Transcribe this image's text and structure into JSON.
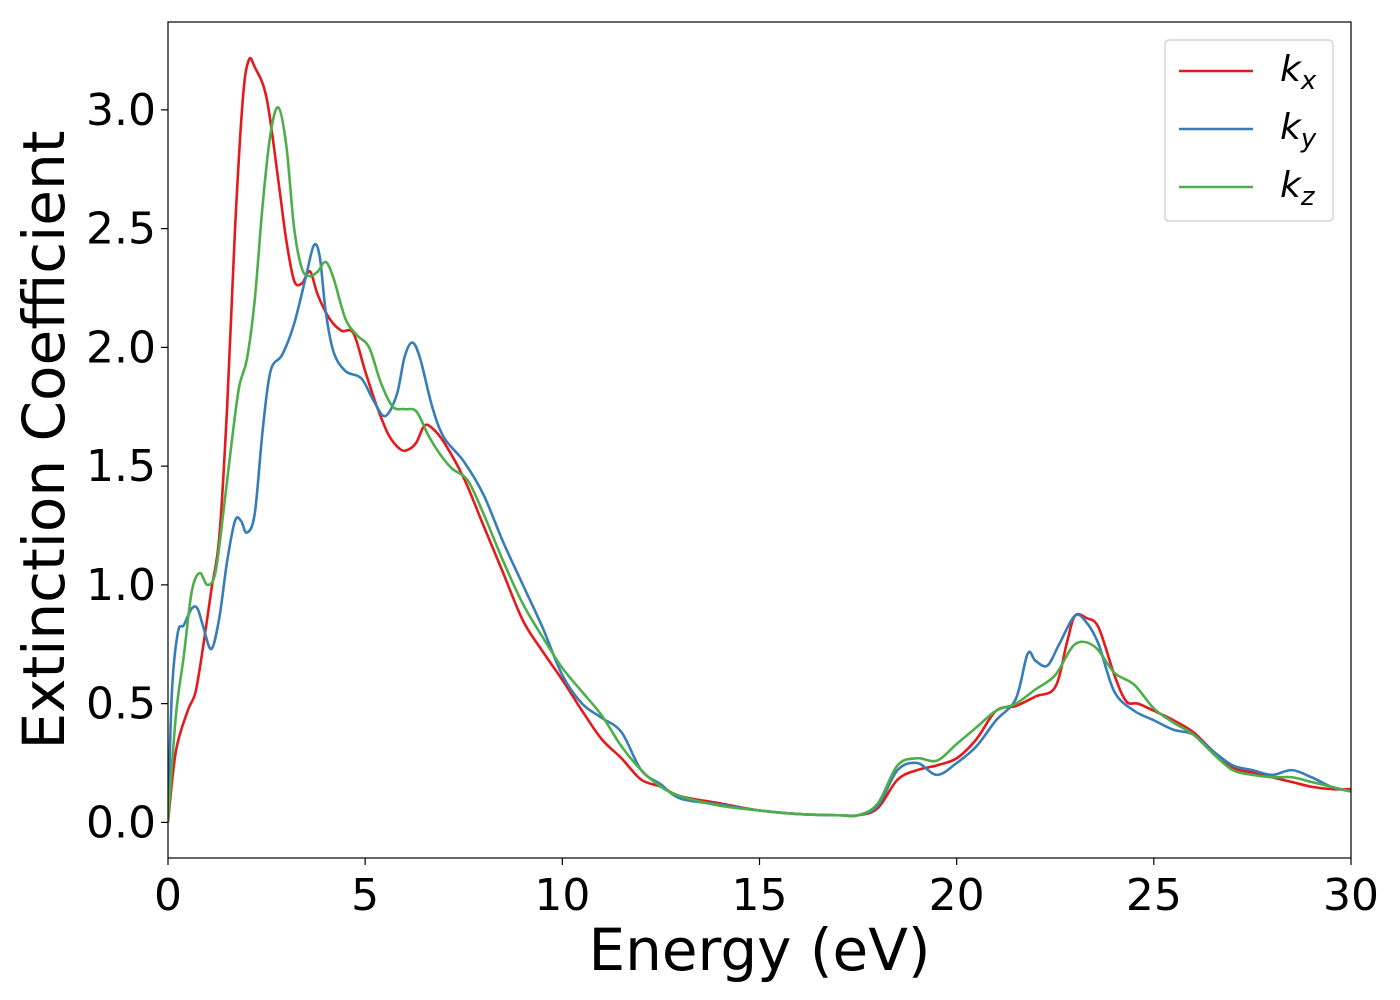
{
  "chart_data": {
    "type": "line",
    "xlabel": "Energy (eV)",
    "ylabel": "Extinction Coefficient",
    "xlim": [
      0,
      30
    ],
    "ylim": [
      -0.15,
      3.37
    ],
    "xticks": [
      0,
      5,
      10,
      15,
      20,
      25,
      30
    ],
    "yticks": [
      0.0,
      0.5,
      1.0,
      1.5,
      2.0,
      2.5,
      3.0
    ],
    "xtick_labels": [
      "0",
      "5",
      "10",
      "15",
      "20",
      "25",
      "30"
    ],
    "ytick_labels": [
      "0.0",
      "0.5",
      "1.0",
      "1.5",
      "2.0",
      "2.5",
      "3.0"
    ],
    "grid": false,
    "legend_position": "top-right",
    "series": [
      {
        "name": "k",
        "subscript": "x",
        "color": "#e41a1c",
        "points": [
          [
            0,
            0
          ],
          [
            0.2,
            0.3
          ],
          [
            0.5,
            0.47
          ],
          [
            0.7,
            0.55
          ],
          [
            0.9,
            0.75
          ],
          [
            1.1,
            0.98
          ],
          [
            1.3,
            1.2
          ],
          [
            1.5,
            1.75
          ],
          [
            1.7,
            2.5
          ],
          [
            1.9,
            3.05
          ],
          [
            2.05,
            3.21
          ],
          [
            2.2,
            3.18
          ],
          [
            2.5,
            3.05
          ],
          [
            2.8,
            2.7
          ],
          [
            3.0,
            2.45
          ],
          [
            3.2,
            2.28
          ],
          [
            3.4,
            2.27
          ],
          [
            3.6,
            2.32
          ],
          [
            3.8,
            2.22
          ],
          [
            4.1,
            2.12
          ],
          [
            4.4,
            2.07
          ],
          [
            4.7,
            2.06
          ],
          [
            5.0,
            1.9
          ],
          [
            5.3,
            1.75
          ],
          [
            5.6,
            1.63
          ],
          [
            5.9,
            1.57
          ],
          [
            6.1,
            1.57
          ],
          [
            6.3,
            1.6
          ],
          [
            6.5,
            1.67
          ],
          [
            6.7,
            1.66
          ],
          [
            7.0,
            1.6
          ],
          [
            7.5,
            1.45
          ],
          [
            8.0,
            1.25
          ],
          [
            8.5,
            1.05
          ],
          [
            9.0,
            0.85
          ],
          [
            9.5,
            0.72
          ],
          [
            10.0,
            0.6
          ],
          [
            10.5,
            0.47
          ],
          [
            11.0,
            0.35
          ],
          [
            11.5,
            0.27
          ],
          [
            12.0,
            0.18
          ],
          [
            12.5,
            0.15
          ],
          [
            13.0,
            0.11
          ],
          [
            14.0,
            0.08
          ],
          [
            15.0,
            0.05
          ],
          [
            16.0,
            0.035
          ],
          [
            17.0,
            0.03
          ],
          [
            17.5,
            0.03
          ],
          [
            18.0,
            0.06
          ],
          [
            18.5,
            0.18
          ],
          [
            19.0,
            0.22
          ],
          [
            19.5,
            0.24
          ],
          [
            20.0,
            0.27
          ],
          [
            20.5,
            0.35
          ],
          [
            21.0,
            0.47
          ],
          [
            21.5,
            0.49
          ],
          [
            22.0,
            0.53
          ],
          [
            22.5,
            0.57
          ],
          [
            22.8,
            0.76
          ],
          [
            23.0,
            0.87
          ],
          [
            23.3,
            0.86
          ],
          [
            23.6,
            0.82
          ],
          [
            24.0,
            0.62
          ],
          [
            24.3,
            0.51
          ],
          [
            24.6,
            0.5
          ],
          [
            25.0,
            0.47
          ],
          [
            25.5,
            0.43
          ],
          [
            26.0,
            0.38
          ],
          [
            26.5,
            0.3
          ],
          [
            27.0,
            0.23
          ],
          [
            27.5,
            0.21
          ],
          [
            28.0,
            0.19
          ],
          [
            28.5,
            0.17
          ],
          [
            29.0,
            0.15
          ],
          [
            29.5,
            0.14
          ],
          [
            30.0,
            0.14
          ]
        ]
      },
      {
        "name": "k",
        "subscript": "y",
        "color": "#377eb8",
        "points": [
          [
            0,
            0
          ],
          [
            0.1,
            0.55
          ],
          [
            0.25,
            0.8
          ],
          [
            0.4,
            0.83
          ],
          [
            0.6,
            0.9
          ],
          [
            0.75,
            0.9
          ],
          [
            0.9,
            0.82
          ],
          [
            1.1,
            0.73
          ],
          [
            1.3,
            0.86
          ],
          [
            1.5,
            1.1
          ],
          [
            1.7,
            1.27
          ],
          [
            1.85,
            1.27
          ],
          [
            2.0,
            1.22
          ],
          [
            2.2,
            1.3
          ],
          [
            2.4,
            1.65
          ],
          [
            2.6,
            1.9
          ],
          [
            2.9,
            1.97
          ],
          [
            3.2,
            2.1
          ],
          [
            3.5,
            2.3
          ],
          [
            3.7,
            2.43
          ],
          [
            3.85,
            2.38
          ],
          [
            4.0,
            2.15
          ],
          [
            4.2,
            1.98
          ],
          [
            4.5,
            1.9
          ],
          [
            4.9,
            1.87
          ],
          [
            5.2,
            1.78
          ],
          [
            5.5,
            1.71
          ],
          [
            5.8,
            1.8
          ],
          [
            6.0,
            1.96
          ],
          [
            6.2,
            2.02
          ],
          [
            6.4,
            1.95
          ],
          [
            6.7,
            1.75
          ],
          [
            7.0,
            1.62
          ],
          [
            7.5,
            1.52
          ],
          [
            8.0,
            1.38
          ],
          [
            8.5,
            1.18
          ],
          [
            9.0,
            1.0
          ],
          [
            9.5,
            0.82
          ],
          [
            10.0,
            0.62
          ],
          [
            10.5,
            0.5
          ],
          [
            11.0,
            0.44
          ],
          [
            11.5,
            0.38
          ],
          [
            12.0,
            0.22
          ],
          [
            12.5,
            0.16
          ],
          [
            13.0,
            0.1
          ],
          [
            14.0,
            0.075
          ],
          [
            15.0,
            0.05
          ],
          [
            16.0,
            0.035
          ],
          [
            17.0,
            0.03
          ],
          [
            17.5,
            0.03
          ],
          [
            18.0,
            0.07
          ],
          [
            18.5,
            0.22
          ],
          [
            19.0,
            0.25
          ],
          [
            19.5,
            0.2
          ],
          [
            20.0,
            0.25
          ],
          [
            20.5,
            0.32
          ],
          [
            21.0,
            0.43
          ],
          [
            21.5,
            0.52
          ],
          [
            21.8,
            0.71
          ],
          [
            22.0,
            0.68
          ],
          [
            22.3,
            0.66
          ],
          [
            22.6,
            0.75
          ],
          [
            23.0,
            0.87
          ],
          [
            23.3,
            0.84
          ],
          [
            23.6,
            0.75
          ],
          [
            24.0,
            0.55
          ],
          [
            24.5,
            0.47
          ],
          [
            25.0,
            0.43
          ],
          [
            25.5,
            0.39
          ],
          [
            26.0,
            0.37
          ],
          [
            26.5,
            0.3
          ],
          [
            27.0,
            0.24
          ],
          [
            27.5,
            0.22
          ],
          [
            28.0,
            0.2
          ],
          [
            28.5,
            0.22
          ],
          [
            29.0,
            0.19
          ],
          [
            29.5,
            0.15
          ],
          [
            30.0,
            0.13
          ]
        ]
      },
      {
        "name": "k",
        "subscript": "z",
        "color": "#4daf4a",
        "points": [
          [
            0,
            0
          ],
          [
            0.2,
            0.45
          ],
          [
            0.4,
            0.7
          ],
          [
            0.6,
            0.97
          ],
          [
            0.8,
            1.05
          ],
          [
            1.0,
            1.0
          ],
          [
            1.2,
            1.05
          ],
          [
            1.4,
            1.3
          ],
          [
            1.6,
            1.58
          ],
          [
            1.8,
            1.83
          ],
          [
            2.0,
            1.95
          ],
          [
            2.2,
            2.2
          ],
          [
            2.4,
            2.6
          ],
          [
            2.6,
            2.9
          ],
          [
            2.8,
            3.01
          ],
          [
            3.0,
            2.85
          ],
          [
            3.2,
            2.5
          ],
          [
            3.4,
            2.33
          ],
          [
            3.6,
            2.3
          ],
          [
            3.8,
            2.32
          ],
          [
            4.0,
            2.36
          ],
          [
            4.2,
            2.29
          ],
          [
            4.5,
            2.12
          ],
          [
            4.8,
            2.05
          ],
          [
            5.1,
            2.0
          ],
          [
            5.4,
            1.85
          ],
          [
            5.7,
            1.75
          ],
          [
            6.0,
            1.74
          ],
          [
            6.3,
            1.73
          ],
          [
            6.6,
            1.63
          ],
          [
            6.9,
            1.55
          ],
          [
            7.2,
            1.49
          ],
          [
            7.6,
            1.44
          ],
          [
            8.0,
            1.3
          ],
          [
            8.5,
            1.1
          ],
          [
            9.0,
            0.92
          ],
          [
            9.5,
            0.78
          ],
          [
            10.0,
            0.65
          ],
          [
            10.5,
            0.55
          ],
          [
            11.0,
            0.45
          ],
          [
            11.5,
            0.32
          ],
          [
            12.0,
            0.22
          ],
          [
            12.5,
            0.15
          ],
          [
            13.0,
            0.11
          ],
          [
            14.0,
            0.07
          ],
          [
            15.0,
            0.05
          ],
          [
            16.0,
            0.035
          ],
          [
            17.0,
            0.03
          ],
          [
            17.5,
            0.03
          ],
          [
            18.0,
            0.08
          ],
          [
            18.5,
            0.24
          ],
          [
            19.0,
            0.27
          ],
          [
            19.5,
            0.26
          ],
          [
            20.0,
            0.33
          ],
          [
            20.5,
            0.4
          ],
          [
            21.0,
            0.47
          ],
          [
            21.5,
            0.5
          ],
          [
            22.0,
            0.56
          ],
          [
            22.5,
            0.62
          ],
          [
            23.0,
            0.75
          ],
          [
            23.5,
            0.74
          ],
          [
            24.0,
            0.63
          ],
          [
            24.5,
            0.58
          ],
          [
            25.0,
            0.48
          ],
          [
            25.5,
            0.42
          ],
          [
            26.0,
            0.37
          ],
          [
            26.5,
            0.29
          ],
          [
            27.0,
            0.22
          ],
          [
            27.5,
            0.2
          ],
          [
            28.0,
            0.19
          ],
          [
            28.5,
            0.19
          ],
          [
            29.0,
            0.17
          ],
          [
            29.5,
            0.15
          ],
          [
            30.0,
            0.13
          ]
        ]
      }
    ]
  }
}
